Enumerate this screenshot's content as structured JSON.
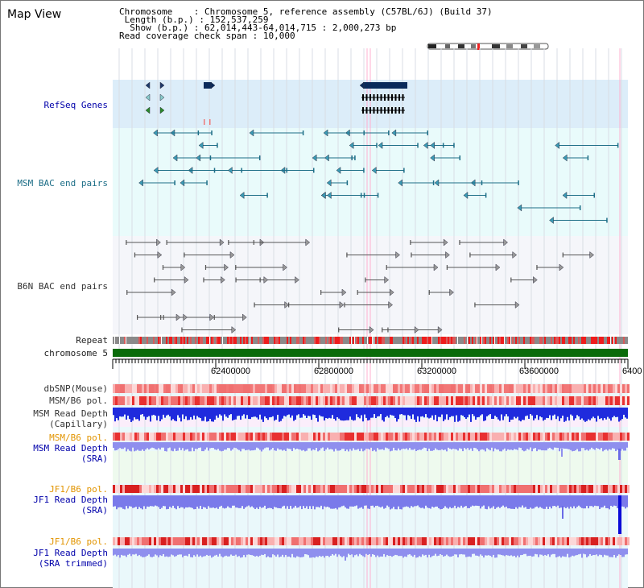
{
  "title": "Map View",
  "info": {
    "chromosome_label": "Chromosome",
    "chromosome_value": "Chromosome 5, reference assembly (C57BL/6J) (Build 37)",
    "length_label": "Length (b.p.)",
    "length_value": "152,537,259",
    "show_label": "Show (b.p.)",
    "show_value": "62,014,443-64,014,715 : 2,000,273 bp",
    "span_label": "Read coverage check span",
    "span_value": "10,000"
  },
  "tracks": {
    "refseq": "RefSeq Genes",
    "msm_bac": "MSM BAC end pairs",
    "b6n_bac": "B6N BAC end pairs",
    "repeat": "Repeat",
    "chromosome": "chromosome 5",
    "dbsnp": "dbSNP(Mouse)",
    "msm_b6_pol_1": "MSM/B6 pol.",
    "msm_depth_cap": "MSM Read Depth\n(Capillary)",
    "msm_b6_pol_2": "MSM/B6 pol.",
    "msm_depth_sra": "MSM Read Depth\n(SRA)",
    "jf1_b6_pol_1": "JF1/B6 pol.",
    "jf1_depth_sra": "JF1 Read Depth\n(SRA)",
    "jf1_b6_pol_2": "JF1/B6 pol.",
    "jf1_depth_trim": "JF1 Read Depth\n(SRA trimmed)"
  },
  "axis_ticks": [
    "62400000",
    "62800000",
    "63200000",
    "63600000",
    "6400"
  ],
  "colors": {
    "refseq_bg": "#dcedf9",
    "msm_bg": "#e9fbfb",
    "b6n_bg": "#f5f6fa",
    "chromosome_bar": "#0a6b0a",
    "depth_blue": "#2222ee",
    "depth_light": "#8888ee",
    "pol_red": "#f28a8a",
    "highlight": "#ffb0d0"
  },
  "icons": [
    "chromosome-ideogram"
  ]
}
